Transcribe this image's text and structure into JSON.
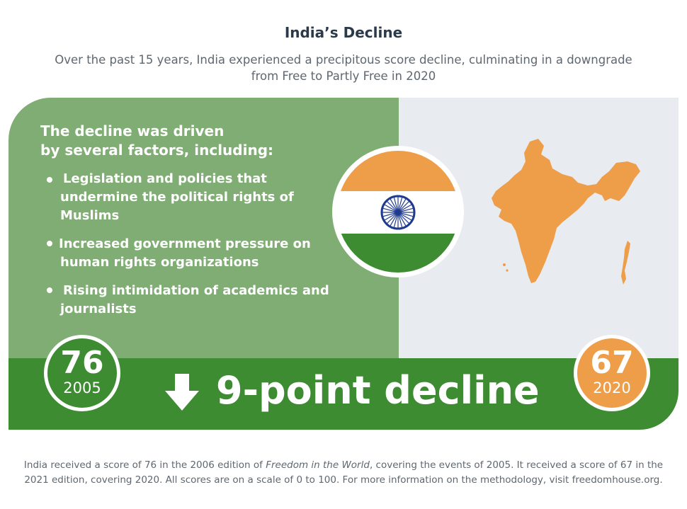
{
  "header": {
    "title": "India’s Decline",
    "subtitle": "Over the past 15 years, India experienced a precipitous score decline, culminating in a downgrade from Free to Partly Free in 2020"
  },
  "factors": {
    "heading_line1": "The decline was driven",
    "heading_line2": "by several factors, including:",
    "items": [
      {
        "line1": "Legislation and policies that",
        "line2": "undermine the political rights of",
        "line3": "Muslims"
      },
      {
        "line1": "Increased government pressure on",
        "line2": "human rights organizations"
      },
      {
        "line1": "Rising intimidation of academics and",
        "line2": "journalists"
      }
    ]
  },
  "scores": {
    "start": {
      "value": "76",
      "year": "2005"
    },
    "end": {
      "value": "67",
      "year": "2020"
    },
    "decline_label": "9-point decline"
  },
  "footnote": {
    "part1": "India received a score of 76 in the 2006 edition of ",
    "publication": "Freedom in the World",
    "part2": ", covering the events of 2005. It received a score of 67 in the 2021 edition, covering 2020. All scores are on a scale of 0 to 100. For more information on the methodology, visit freedomhouse.org."
  },
  "colors": {
    "saffron": "#ee9d48",
    "green_dark": "#3d8c32",
    "green_light": "#7fad73",
    "navy": "#1f3b8f",
    "map_bg": "#e8ebf0"
  },
  "icons": [
    "down-arrow-icon",
    "india-flag-icon",
    "india-map-icon",
    "bullet-icon"
  ]
}
